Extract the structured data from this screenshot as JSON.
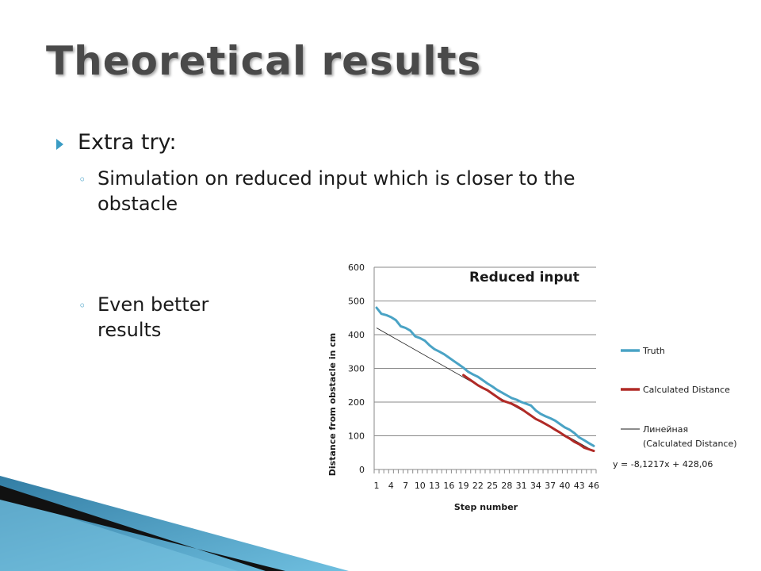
{
  "slide": {
    "title": "Theoretical results",
    "bullets": [
      {
        "text": "Extra try:"
      }
    ],
    "sub_bullets": [
      {
        "line1": "Simulation on reduced input which is closer to the",
        "line2": "obstacle"
      },
      {
        "line1": "Even better",
        "line2": "results"
      }
    ]
  },
  "colors": {
    "accent": "#3a9cc4",
    "truth": "#4aa3c5",
    "calculated": "#b02a26",
    "trendline": "#1a1a1a"
  },
  "chart_data": {
    "type": "line",
    "title": "Reduced input",
    "xlabel": "Step number",
    "ylabel": "Distance from obstacle in cm",
    "ylim": [
      0,
      600
    ],
    "yticks": [
      0,
      100,
      200,
      300,
      400,
      500,
      600
    ],
    "xtick_labels": [
      "1",
      "4",
      "7",
      "10",
      "13",
      "16",
      "19",
      "22",
      "25",
      "28",
      "31",
      "34",
      "37",
      "40",
      "43",
      "46"
    ],
    "grid": "horizontal",
    "legend_position": "right",
    "x_count": 46,
    "series": [
      {
        "name": "Truth",
        "x_start": 1,
        "values": [
          480,
          462,
          458,
          452,
          443,
          425,
          420,
          412,
          395,
          390,
          382,
          368,
          357,
          350,
          342,
          332,
          322,
          312,
          302,
          290,
          282,
          275,
          265,
          255,
          246,
          236,
          228,
          220,
          212,
          207,
          200,
          195,
          190,
          175,
          165,
          158,
          152,
          145,
          135,
          125,
          118,
          108,
          95,
          87,
          78,
          70
        ]
      },
      {
        "name": "Calculated Distance",
        "x_start": 19,
        "values": [
          280,
          270,
          260,
          250,
          242,
          235,
          225,
          215,
          205,
          200,
          195,
          188,
          180,
          170,
          160,
          150,
          143,
          135,
          127,
          118,
          110,
          100,
          92,
          82,
          75,
          65,
          60,
          55
        ]
      }
    ],
    "trendline": {
      "name_line1": "Линейная",
      "name_line2": "(Calculated Distance)",
      "slope": -8.1217,
      "intercept": 428.06,
      "x_range": [
        1,
        46
      ],
      "equation": "y = -8,1217x + 428,06"
    }
  }
}
